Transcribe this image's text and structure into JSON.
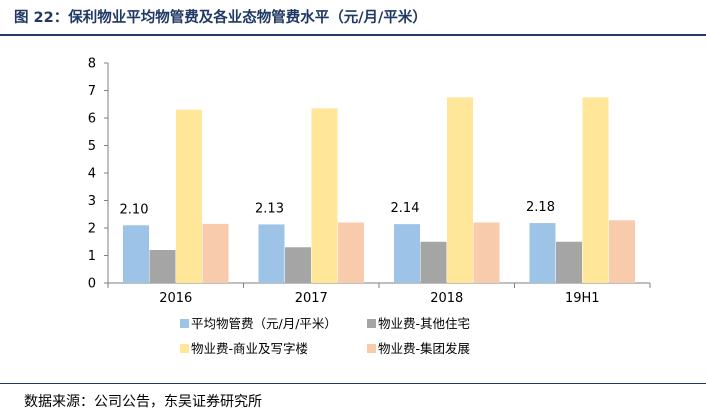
{
  "header": {
    "title": "图 22：保利物业平均物管费及各业态物管费水平（元/月/平米）"
  },
  "footer": {
    "source": "数据来源：公司公告，东吴证券研究所"
  },
  "chart_data": {
    "type": "bar",
    "categories": [
      "2016",
      "2017",
      "2018",
      "19H1"
    ],
    "ylim": [
      0,
      8
    ],
    "yticks": [
      "0",
      "1",
      "2",
      "3",
      "4",
      "5",
      "6",
      "7",
      "8"
    ],
    "grid": false,
    "legend_position": "bottom",
    "series": [
      {
        "name": "平均物管费（元/月/平米）",
        "values": [
          2.1,
          2.13,
          2.14,
          2.18
        ],
        "labels": [
          "2.10",
          "2.13",
          "2.14",
          "2.18"
        ],
        "color": "#9dc3e6"
      },
      {
        "name": "物业费-其他住宅",
        "values": [
          1.2,
          1.3,
          1.5,
          1.5
        ],
        "color": "#a5a5a5"
      },
      {
        "name": "物业费-商业及写字楼",
        "values": [
          6.3,
          6.35,
          6.75,
          6.75
        ],
        "color": "#ffe699"
      },
      {
        "name": "物业费-集团发展",
        "values": [
          2.15,
          2.2,
          2.2,
          2.28
        ],
        "color": "#f8cbad"
      }
    ]
  }
}
